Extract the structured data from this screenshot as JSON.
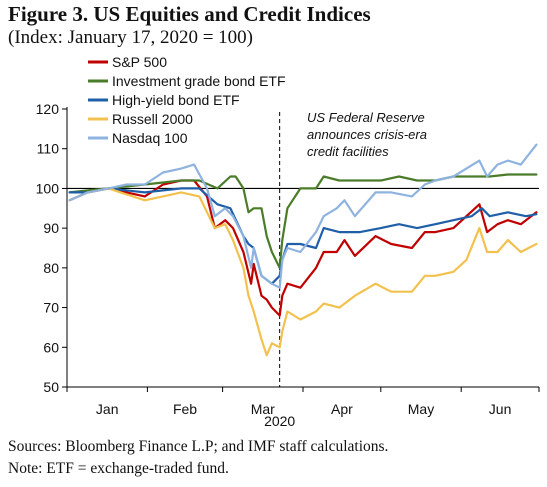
{
  "title": "Figure 3. US Equities and Credit Indices",
  "subtitle": "(Index: January 17, 2020 = 100)",
  "footer": {
    "sources": "Sources: Bloomberg Finance L.P; and IMF staff calculations.",
    "note": "Note: ETF = exchange-traded fund."
  },
  "chart_data": {
    "type": "line",
    "ylim": [
      50,
      120
    ],
    "yticks": [
      50,
      60,
      70,
      80,
      90,
      100,
      110,
      120
    ],
    "xlabels": [
      "Jan",
      "Feb",
      "Mar",
      "Apr",
      "May",
      "Jun"
    ],
    "year_label": "2020",
    "grid": false,
    "legend_position": "top-left",
    "reference_line": 100,
    "annotation": {
      "lines": [
        "US Federal Reserve",
        "announces crisis-era",
        "credit facilities"
      ],
      "event_date": "2020-03-23"
    },
    "series": [
      {
        "name": "S&P 500",
        "color": "#c00000",
        "x": [
          "2020-01-02",
          "2020-01-09",
          "2020-01-17",
          "2020-01-24",
          "2020-01-31",
          "2020-02-07",
          "2020-02-14",
          "2020-02-19",
          "2020-02-24",
          "2020-02-27",
          "2020-03-02",
          "2020-03-05",
          "2020-03-09",
          "2020-03-12",
          "2020-03-13",
          "2020-03-16",
          "2020-03-18",
          "2020-03-20",
          "2020-03-23",
          "2020-03-24",
          "2020-03-26",
          "2020-03-31",
          "2020-04-06",
          "2020-04-09",
          "2020-04-14",
          "2020-04-17",
          "2020-04-21",
          "2020-04-29",
          "2020-05-05",
          "2020-05-13",
          "2020-05-18",
          "2020-05-22",
          "2020-05-29",
          "2020-06-03",
          "2020-06-08",
          "2020-06-11",
          "2020-06-15",
          "2020-06-19",
          "2020-06-24",
          "2020-06-30"
        ],
        "values": [
          97,
          99,
          100,
          99,
          98,
          101,
          102,
          102,
          98,
          90,
          92,
          90,
          84,
          76,
          81,
          73,
          72,
          70,
          68,
          73,
          76,
          75,
          80,
          84,
          84,
          87,
          83,
          88,
          86,
          85,
          89,
          89,
          90,
          93,
          96,
          89,
          91,
          92,
          91,
          94
        ]
      },
      {
        "name": "Investment grade bond ETF",
        "color": "#4a7c2a",
        "x": [
          "2020-01-02",
          "2020-01-09",
          "2020-01-17",
          "2020-01-24",
          "2020-01-31",
          "2020-02-07",
          "2020-02-14",
          "2020-02-21",
          "2020-02-28",
          "2020-03-04",
          "2020-03-06",
          "2020-03-09",
          "2020-03-11",
          "2020-03-13",
          "2020-03-16",
          "2020-03-18",
          "2020-03-20",
          "2020-03-23",
          "2020-03-24",
          "2020-03-26",
          "2020-03-31",
          "2020-04-06",
          "2020-04-09",
          "2020-04-15",
          "2020-04-23",
          "2020-05-01",
          "2020-05-08",
          "2020-05-15",
          "2020-05-22",
          "2020-05-29",
          "2020-06-05",
          "2020-06-12",
          "2020-06-19",
          "2020-06-26",
          "2020-06-30"
        ],
        "values": [
          99,
          99.5,
          100,
          100.5,
          101,
          101.5,
          102,
          102,
          100,
          103,
          103,
          100,
          94,
          95,
          95,
          88,
          84,
          80,
          87,
          95,
          100,
          100,
          103,
          102,
          102,
          102,
          103,
          102,
          102,
          103,
          103,
          103,
          103.5,
          103.5,
          103.5
        ]
      },
      {
        "name": "High-yield bond ETF",
        "color": "#1f5fa8",
        "x": [
          "2020-01-02",
          "2020-01-09",
          "2020-01-17",
          "2020-01-24",
          "2020-01-31",
          "2020-02-07",
          "2020-02-14",
          "2020-02-21",
          "2020-02-28",
          "2020-03-04",
          "2020-03-09",
          "2020-03-11",
          "2020-03-13",
          "2020-03-16",
          "2020-03-18",
          "2020-03-20",
          "2020-03-23",
          "2020-03-24",
          "2020-03-26",
          "2020-03-31",
          "2020-04-06",
          "2020-04-09",
          "2020-04-15",
          "2020-04-23",
          "2020-05-01",
          "2020-05-08",
          "2020-05-15",
          "2020-05-22",
          "2020-05-29",
          "2020-06-05",
          "2020-06-09",
          "2020-06-12",
          "2020-06-19",
          "2020-06-26",
          "2020-06-30"
        ],
        "values": [
          99,
          99,
          100,
          99.5,
          99,
          99.5,
          100,
          100,
          96,
          95,
          88,
          86,
          85,
          78,
          77,
          76,
          78,
          82,
          86,
          86,
          85,
          90,
          89,
          89,
          90,
          91,
          90,
          91,
          92,
          93,
          95,
          93,
          94,
          93,
          93.5
        ]
      },
      {
        "name": "Russell 2000",
        "color": "#f2c14e",
        "x": [
          "2020-01-02",
          "2020-01-09",
          "2020-01-17",
          "2020-01-24",
          "2020-01-31",
          "2020-02-07",
          "2020-02-14",
          "2020-02-21",
          "2020-02-27",
          "2020-03-02",
          "2020-03-05",
          "2020-03-09",
          "2020-03-11",
          "2020-03-13",
          "2020-03-16",
          "2020-03-18",
          "2020-03-20",
          "2020-03-23",
          "2020-03-24",
          "2020-03-26",
          "2020-03-31",
          "2020-04-06",
          "2020-04-09",
          "2020-04-15",
          "2020-04-21",
          "2020-04-29",
          "2020-05-05",
          "2020-05-13",
          "2020-05-18",
          "2020-05-22",
          "2020-05-29",
          "2020-06-03",
          "2020-06-08",
          "2020-06-11",
          "2020-06-15",
          "2020-06-19",
          "2020-06-24",
          "2020-06-30"
        ],
        "values": [
          97,
          99,
          100,
          98.5,
          97,
          98,
          99,
          98,
          90,
          91,
          87,
          80,
          73,
          69,
          62,
          58,
          61,
          60,
          64,
          69,
          67,
          69,
          71,
          70,
          73,
          76,
          74,
          74,
          78,
          78,
          79,
          82,
          90,
          84,
          84,
          87,
          84,
          86
        ]
      },
      {
        "name": "Nasdaq 100",
        "color": "#8fb3df",
        "x": [
          "2020-01-02",
          "2020-01-09",
          "2020-01-17",
          "2020-01-24",
          "2020-01-31",
          "2020-02-07",
          "2020-02-14",
          "2020-02-19",
          "2020-02-24",
          "2020-02-27",
          "2020-03-02",
          "2020-03-05",
          "2020-03-09",
          "2020-03-12",
          "2020-03-13",
          "2020-03-16",
          "2020-03-18",
          "2020-03-20",
          "2020-03-23",
          "2020-03-24",
          "2020-03-26",
          "2020-03-31",
          "2020-04-06",
          "2020-04-09",
          "2020-04-14",
          "2020-04-17",
          "2020-04-21",
          "2020-04-29",
          "2020-05-05",
          "2020-05-13",
          "2020-05-18",
          "2020-05-22",
          "2020-05-29",
          "2020-06-03",
          "2020-06-08",
          "2020-06-11",
          "2020-06-15",
          "2020-06-19",
          "2020-06-24",
          "2020-06-30"
        ],
        "values": [
          97,
          99,
          100,
          101,
          101,
          104,
          105,
          106,
          100,
          93,
          95,
          93,
          88,
          80,
          85,
          78,
          77,
          76,
          75,
          82,
          85,
          84,
          89,
          93,
          95,
          97,
          93,
          99,
          99,
          98,
          101,
          102,
          103,
          105,
          107,
          103,
          106,
          107,
          106,
          111
        ]
      }
    ]
  }
}
